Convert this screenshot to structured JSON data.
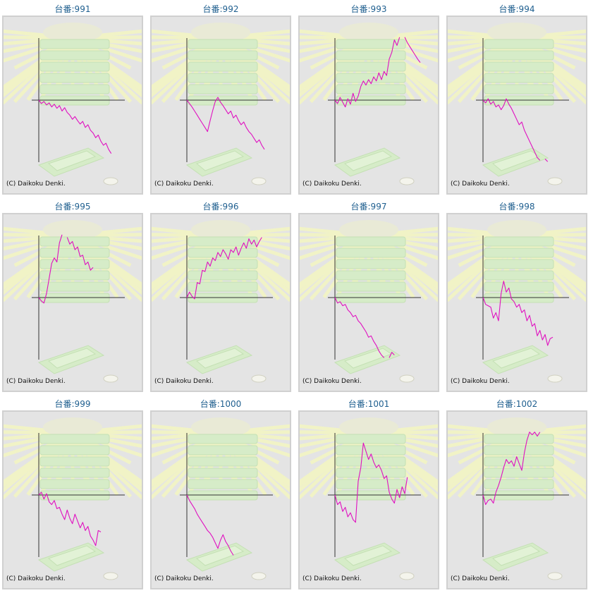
{
  "copyright": "(C) Daikoku Denki.",
  "colors": {
    "line": "#e010c0",
    "axis": "#333333",
    "title": "#1f5f8f",
    "frame_bg": "#e4e4e4"
  },
  "chart_data": [
    {
      "type": "line",
      "title": "台番:991",
      "y": [
        0,
        -5,
        -2,
        -7,
        -4,
        -10,
        -6,
        -12,
        -8,
        -16,
        -11,
        -18,
        -22,
        -28,
        -24,
        -30,
        -35,
        -31,
        -40,
        -36,
        -44,
        -48,
        -55,
        -51,
        -60,
        -66,
        -63,
        -72,
        -78
      ]
    },
    {
      "type": "line",
      "title": "台番:992",
      "y": [
        0,
        -5,
        -10,
        -16,
        -22,
        -28,
        -34,
        -40,
        -46,
        -30,
        -15,
        -2,
        4,
        -3,
        -8,
        -14,
        -20,
        -16,
        -26,
        -22,
        -30,
        -36,
        -32,
        -40,
        -46,
        -50,
        -56,
        -62,
        -58,
        -66,
        -72
      ]
    },
    {
      "type": "line",
      "title": "台番:993",
      "y": [
        0,
        -5,
        4,
        -3,
        -10,
        2,
        -6,
        10,
        -2,
        6,
        20,
        28,
        22,
        30,
        24,
        34,
        28,
        40,
        30,
        42,
        36,
        60,
        70,
        88,
        80,
        92,
        null,
        92,
        84,
        78,
        72,
        66,
        60,
        55
      ]
    },
    {
      "type": "line",
      "title": "台番:994",
      "y": [
        0,
        -4,
        2,
        -6,
        -2,
        -10,
        -7,
        -14,
        -8,
        2,
        -6,
        -12,
        -20,
        -28,
        -36,
        -32,
        -44,
        -52,
        -60,
        -68,
        -76,
        -84,
        -88,
        null,
        -86,
        -90
      ]
    },
    {
      "type": "line",
      "title": "台番:995",
      "y": [
        0,
        -5,
        -8,
        6,
        28,
        50,
        58,
        52,
        80,
        92,
        null,
        88,
        78,
        82,
        70,
        74,
        60,
        62,
        48,
        52,
        40,
        44
      ]
    },
    {
      "type": "line",
      "title": "台番:996",
      "y": [
        0,
        8,
        2,
        -2,
        22,
        20,
        40,
        38,
        52,
        46,
        58,
        54,
        66,
        60,
        70,
        64,
        56,
        70,
        66,
        74,
        62,
        72,
        80,
        72,
        86,
        78,
        84,
        74,
        82,
        88
      ]
    },
    {
      "type": "line",
      "title": "台番:997",
      "y": [
        0,
        -8,
        -6,
        -12,
        -10,
        -18,
        -22,
        -28,
        -26,
        -34,
        -38,
        -44,
        -50,
        -58,
        -56,
        -64,
        -70,
        -78,
        -84,
        -88,
        null,
        -88,
        -80,
        -84
      ]
    },
    {
      "type": "line",
      "title": "台番:998",
      "y": [
        0,
        -10,
        -12,
        -14,
        -30,
        -22,
        -34,
        6,
        24,
        8,
        14,
        -2,
        -6,
        -14,
        -10,
        -22,
        -18,
        -34,
        -26,
        -42,
        -38,
        -56,
        -48,
        -62,
        -54,
        -70,
        -60,
        -58
      ]
    },
    {
      "type": "line",
      "title": "台番:999",
      "y": [
        0,
        4,
        -6,
        2,
        -10,
        -14,
        -8,
        -20,
        -18,
        -28,
        -36,
        -22,
        -34,
        -42,
        -28,
        -38,
        -48,
        -40,
        -52,
        -46,
        -60,
        -66,
        -74,
        -52,
        -54
      ]
    },
    {
      "type": "line",
      "title": "台番:1000",
      "y": [
        0,
        -8,
        -14,
        -20,
        -28,
        -34,
        -40,
        -46,
        -52,
        -56,
        -62,
        -70,
        -78,
        -66,
        -58,
        -68,
        -74,
        -82,
        -88
      ]
    },
    {
      "type": "line",
      "title": "台番:1001",
      "y": [
        0,
        -14,
        -10,
        -24,
        -18,
        -32,
        -26,
        -36,
        -40,
        20,
        40,
        76,
        64,
        52,
        60,
        48,
        40,
        44,
        36,
        24,
        28,
        4,
        -6,
        -12,
        8,
        -4,
        12,
        2,
        26
      ]
    },
    {
      "type": "line",
      "title": "台番:1002",
      "y": [
        0,
        -14,
        -8,
        -6,
        -12,
        4,
        14,
        26,
        40,
        52,
        46,
        50,
        42,
        56,
        46,
        36,
        62,
        80,
        92,
        88,
        92,
        86,
        92
      ]
    }
  ]
}
